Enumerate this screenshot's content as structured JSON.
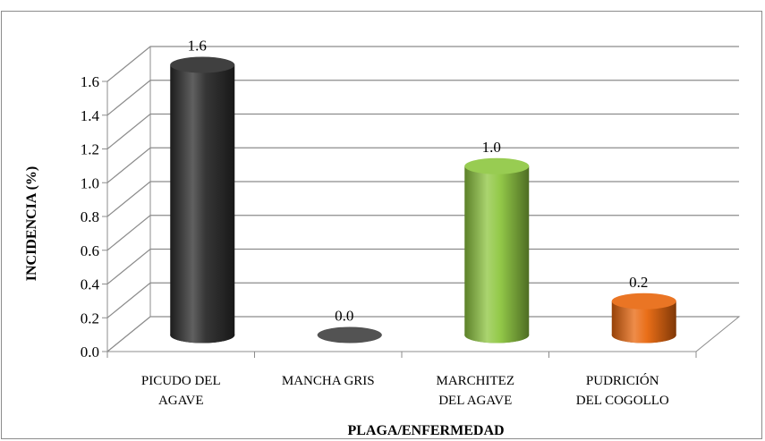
{
  "chart_data": {
    "type": "bar",
    "bar_style": "3d-cylinder",
    "categories": [
      [
        "PICUDO DEL",
        "AGAVE"
      ],
      [
        "MANCHA GRIS"
      ],
      [
        "MARCHITEZ",
        "DEL AGAVE"
      ],
      [
        "PUDRICIÓN",
        "DEL COGOLLO"
      ]
    ],
    "values": [
      1.6,
      0.0,
      1.0,
      0.2
    ],
    "data_labels": [
      "1.6",
      "0.0",
      "1.0",
      "0.2"
    ],
    "colors": [
      "#2b2b2b",
      "#4a4a4a",
      "#8dc63f",
      "#e8660c"
    ],
    "ylabel": "INCIDENCIA (%)",
    "xlabel": "PLAGA/ENFERMEDAD",
    "ylim": [
      0,
      1.6
    ],
    "yticks": [
      "0.0",
      "0.2",
      "0.4",
      "0.6",
      "0.8",
      "1.0",
      "1.2",
      "1.4",
      "1.6"
    ],
    "grid": true,
    "legend": "none"
  }
}
